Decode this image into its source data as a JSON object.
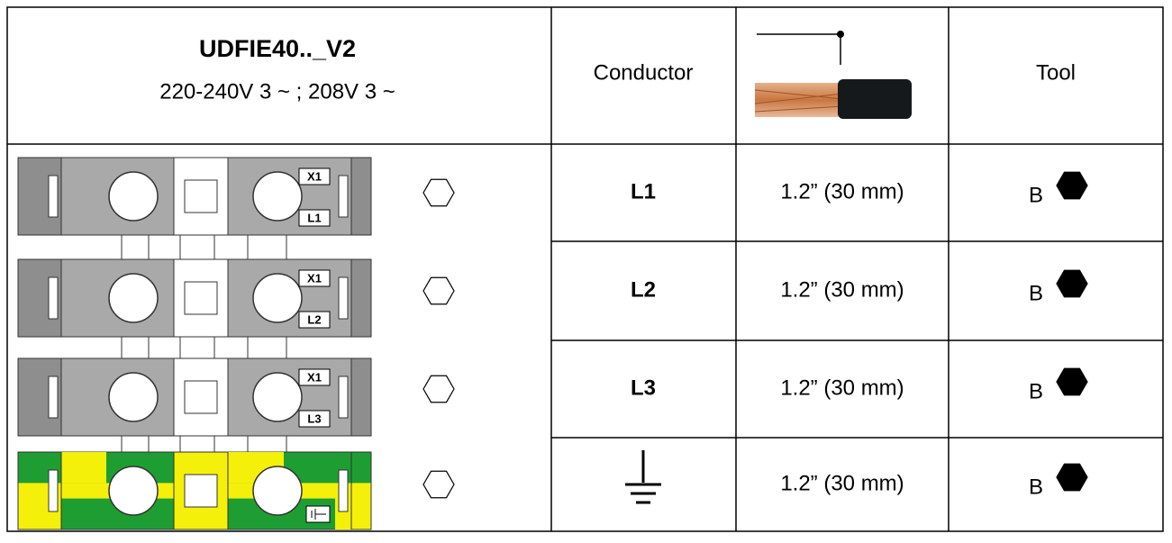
{
  "header": {
    "title": "UDFIE40.._V2",
    "subtitle": "220-240V 3 ~ ; 208V 3 ~",
    "conductor": "Conductor",
    "tool": "Tool"
  },
  "rows": [
    {
      "terminal": [
        "X1",
        "L1"
      ],
      "conductor": "L1",
      "length": "1.2” (30 mm)",
      "tool": "B"
    },
    {
      "terminal": [
        "X1",
        "L2"
      ],
      "conductor": "L2",
      "length": "1.2” (30 mm)",
      "tool": "B"
    },
    {
      "terminal": [
        "X1",
        "L3"
      ],
      "conductor": "L3",
      "length": "1.2” (30 mm)",
      "tool": "B"
    },
    {
      "length": "1.2” (30 mm)",
      "tool": "B"
    }
  ]
}
